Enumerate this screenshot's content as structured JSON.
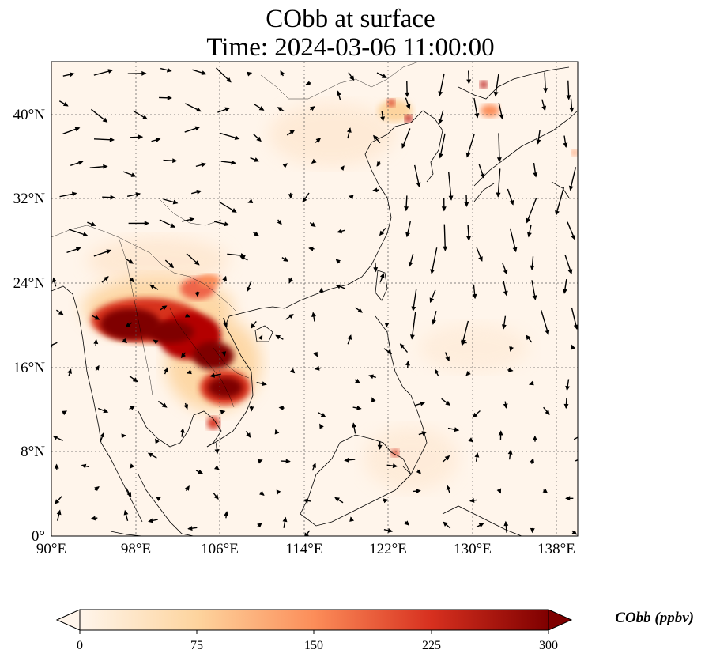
{
  "title": {
    "line1": "CObb at surface",
    "line2": "Time: 2024-03-06 11:00:00"
  },
  "map": {
    "extent": {
      "lon": [
        90,
        140
      ],
      "lat": [
        0,
        45
      ]
    },
    "lon_ticks": [
      {
        "value": 90,
        "label": "90°E"
      },
      {
        "value": 98,
        "label": "98°E"
      },
      {
        "value": 106,
        "label": "106°E"
      },
      {
        "value": 114,
        "label": "114°E"
      },
      {
        "value": 122,
        "label": "122°E"
      },
      {
        "value": 130,
        "label": "130°E"
      },
      {
        "value": 138,
        "label": "138°E"
      }
    ],
    "lat_ticks": [
      {
        "value": 0,
        "label": "0°"
      },
      {
        "value": 8,
        "label": "8°N"
      },
      {
        "value": 16,
        "label": "16°N"
      },
      {
        "value": 24,
        "label": "24°N"
      },
      {
        "value": 32,
        "label": "32°N"
      },
      {
        "value": 40,
        "label": "40°N"
      }
    ],
    "gridlines": true,
    "colormap": [
      "#fff5eb",
      "#fdd49e",
      "#fc8d59",
      "#d7301f",
      "#7f0000"
    ],
    "hotspots": [
      {
        "region": "Myanmar / N Thailand / Laos",
        "lon": [
          95,
          108
        ],
        "lat": [
          17,
          22
        ],
        "level": "very high"
      },
      {
        "region": "Cambodia",
        "lon": [
          104,
          108
        ],
        "lat": [
          12,
          16
        ],
        "level": "very high"
      },
      {
        "region": "Gulf of Bohai / NE China",
        "lon": [
          119,
          125
        ],
        "lat": [
          39,
          42
        ],
        "level": "high"
      },
      {
        "region": "Russian Far East",
        "lon": [
          130,
          131.5
        ],
        "lat": [
          40,
          43
        ],
        "level": "moderate"
      }
    ],
    "wind_vectors": "shown"
  },
  "colorbar": {
    "label": "CObb (ppbv)",
    "ticks": [
      {
        "value": 0,
        "label": "0"
      },
      {
        "value": 75,
        "label": "75"
      },
      {
        "value": 150,
        "label": "150"
      },
      {
        "value": 225,
        "label": "225"
      },
      {
        "value": 300,
        "label": "300"
      }
    ],
    "range": [
      0,
      300
    ],
    "extend": "both"
  }
}
